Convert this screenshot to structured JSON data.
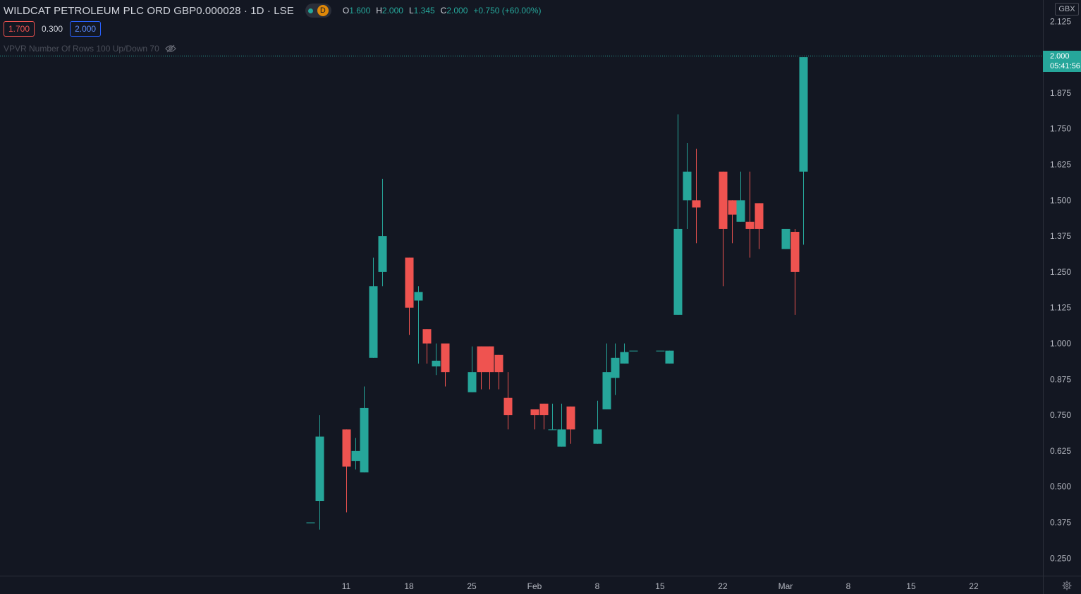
{
  "header": {
    "symbol": "WILDCAT PETROLEUM PLC ORD GBP0.000028 · 1D · LSE",
    "badge_letter": "D",
    "ohlc": [
      {
        "k": "O",
        "v": "1.600"
      },
      {
        "k": "H",
        "v": "2.000"
      },
      {
        "k": "L",
        "v": "1.345"
      },
      {
        "k": "C",
        "v": "2.000"
      },
      {
        "k": "",
        "v": "+0.750 (+60.00%)"
      }
    ],
    "bid": "1.700",
    "spread": "0.300",
    "ask": "2.000",
    "indicator": "VPVR Number Of Rows 100 Up/Down 70"
  },
  "price_axis": {
    "currency": "GBX",
    "last_price": "2.000",
    "countdown": "05:41:56"
  },
  "colors": {
    "up": "#26a69a",
    "down": "#ef5350",
    "background": "#131722",
    "axis_text": "#b2b5be"
  },
  "icons": {
    "visibility": "eye-slash-icon",
    "settings": "gear-icon"
  },
  "chart_data": {
    "type": "candlestick",
    "currency": "GBX",
    "ylim": [
      0.2,
      2.15
    ],
    "y_ticks": [
      "2.125",
      "1.875",
      "1.750",
      "1.625",
      "1.500",
      "1.375",
      "1.250",
      "1.125",
      "1.000",
      "0.875",
      "0.750",
      "0.625",
      "0.500",
      "0.375",
      "0.250"
    ],
    "x_ticks": [
      "11",
      "18",
      "25",
      "Feb",
      "8",
      "15",
      "22",
      "Mar",
      "8",
      "15",
      "22"
    ],
    "candles": [
      {
        "date": "2021-01-07",
        "o": 0.375,
        "h": 0.375,
        "l": 0.375,
        "c": 0.375
      },
      {
        "date": "2021-01-08",
        "o": 0.45,
        "h": 0.75,
        "l": 0.35,
        "c": 0.675
      },
      {
        "date": "2021-01-11",
        "o": 0.7,
        "h": 0.7,
        "l": 0.41,
        "c": 0.57
      },
      {
        "date": "2021-01-12",
        "o": 0.59,
        "h": 0.67,
        "l": 0.56,
        "c": 0.625
      },
      {
        "date": "2021-01-13",
        "o": 0.55,
        "h": 0.85,
        "l": 0.55,
        "c": 0.775
      },
      {
        "date": "2021-01-14",
        "o": 0.95,
        "h": 1.3,
        "l": 0.95,
        "c": 1.2
      },
      {
        "date": "2021-01-15",
        "o": 1.25,
        "h": 1.575,
        "l": 1.2,
        "c": 1.375
      },
      {
        "date": "2021-01-18",
        "o": 1.3,
        "h": 1.3,
        "l": 1.03,
        "c": 1.125
      },
      {
        "date": "2021-01-19",
        "o": 1.15,
        "h": 1.2,
        "l": 0.93,
        "c": 1.18
      },
      {
        "date": "2021-01-20",
        "o": 1.05,
        "h": 1.05,
        "l": 0.93,
        "c": 1.0
      },
      {
        "date": "2021-01-21",
        "o": 0.92,
        "h": 1.0,
        "l": 0.89,
        "c": 0.94
      },
      {
        "date": "2021-01-22",
        "o": 1.0,
        "h": 1.0,
        "l": 0.85,
        "c": 0.9
      },
      {
        "date": "2021-01-25",
        "o": 0.83,
        "h": 0.99,
        "l": 0.83,
        "c": 0.9
      },
      {
        "date": "2021-01-26",
        "o": 0.99,
        "h": 0.99,
        "l": 0.84,
        "c": 0.9
      },
      {
        "date": "2021-01-27",
        "o": 0.99,
        "h": 0.99,
        "l": 0.84,
        "c": 0.9
      },
      {
        "date": "2021-01-28",
        "o": 0.96,
        "h": 0.96,
        "l": 0.84,
        "c": 0.9
      },
      {
        "date": "2021-01-29",
        "o": 0.81,
        "h": 0.9,
        "l": 0.7,
        "c": 0.75
      },
      {
        "date": "2021-02-01",
        "o": 0.77,
        "h": 0.77,
        "l": 0.7,
        "c": 0.75
      },
      {
        "date": "2021-02-02",
        "o": 0.79,
        "h": 0.79,
        "l": 0.7,
        "c": 0.75
      },
      {
        "date": "2021-02-03",
        "o": 0.7,
        "h": 0.79,
        "l": 0.7,
        "c": 0.7
      },
      {
        "date": "2021-02-04",
        "o": 0.64,
        "h": 0.79,
        "l": 0.64,
        "c": 0.7
      },
      {
        "date": "2021-02-05",
        "o": 0.78,
        "h": 0.78,
        "l": 0.65,
        "c": 0.7
      },
      {
        "date": "2021-02-08",
        "o": 0.65,
        "h": 0.8,
        "l": 0.65,
        "c": 0.7
      },
      {
        "date": "2021-02-09",
        "o": 0.77,
        "h": 1.0,
        "l": 0.77,
        "c": 0.9
      },
      {
        "date": "2021-02-10",
        "o": 0.88,
        "h": 1.0,
        "l": 0.82,
        "c": 0.95
      },
      {
        "date": "2021-02-11",
        "o": 0.93,
        "h": 1.0,
        "l": 0.93,
        "c": 0.97
      },
      {
        "date": "2021-02-12",
        "o": 0.975,
        "h": 0.975,
        "l": 0.975,
        "c": 0.975
      },
      {
        "date": "2021-02-15",
        "o": 0.975,
        "h": 0.975,
        "l": 0.975,
        "c": 0.975
      },
      {
        "date": "2021-02-16",
        "o": 0.93,
        "h": 0.975,
        "l": 0.93,
        "c": 0.975
      },
      {
        "date": "2021-02-17",
        "o": 1.1,
        "h": 1.8,
        "l": 1.1,
        "c": 1.4
      },
      {
        "date": "2021-02-18",
        "o": 1.5,
        "h": 1.7,
        "l": 1.4,
        "c": 1.6
      },
      {
        "date": "2021-02-19",
        "o": 1.5,
        "h": 1.68,
        "l": 1.35,
        "c": 1.475
      },
      {
        "date": "2021-02-22",
        "o": 1.6,
        "h": 1.6,
        "l": 1.2,
        "c": 1.4
      },
      {
        "date": "2021-02-23",
        "o": 1.5,
        "h": 1.5,
        "l": 1.35,
        "c": 1.45
      },
      {
        "date": "2021-02-24",
        "o": 1.425,
        "h": 1.6,
        "l": 1.425,
        "c": 1.5
      },
      {
        "date": "2021-02-25",
        "o": 1.425,
        "h": 1.6,
        "l": 1.3,
        "c": 1.4
      },
      {
        "date": "2021-02-26",
        "o": 1.49,
        "h": 1.49,
        "l": 1.33,
        "c": 1.4
      },
      {
        "date": "2021-03-01",
        "o": 1.33,
        "h": 1.4,
        "l": 1.33,
        "c": 1.4
      },
      {
        "date": "2021-03-02",
        "o": 1.39,
        "h": 1.4,
        "l": 1.1,
        "c": 1.25
      },
      {
        "date": "2021-03-03",
        "o": 1.6,
        "h": 2.0,
        "l": 1.345,
        "c": 2.0
      }
    ]
  }
}
